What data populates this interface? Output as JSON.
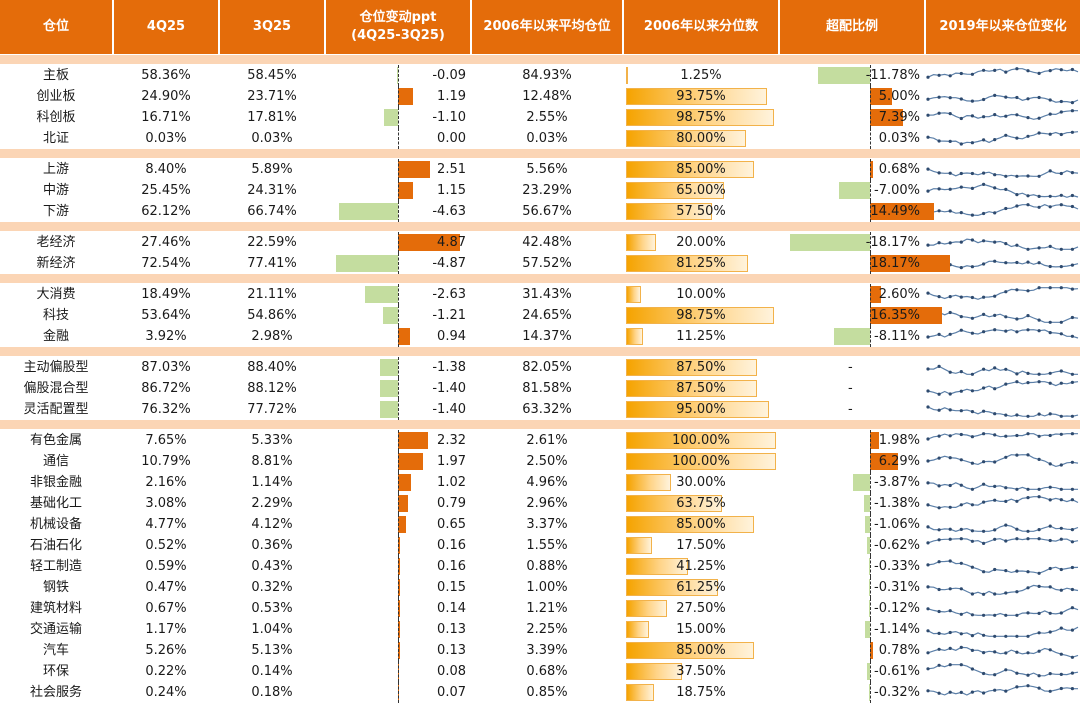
{
  "header": {
    "col_name": "仓位",
    "col_q4": "4Q25",
    "col_q3": "3Q25",
    "col_change": "仓位变动ppt\n(4Q25-3Q25)",
    "col_avg": "2006年以来平均仓位",
    "col_pctile": "2006年以来分位数",
    "col_over": "超配比例",
    "col_trend": "2019年以来仓位变化"
  },
  "colors": {
    "header_bg": "#e46c0a",
    "separator": "#fbd5b5",
    "positive": "#e46c0a",
    "negative": "#c4dd9f",
    "spark_line": "#5b7fa8",
    "spark_dot": "#2e4a6e"
  },
  "scales": {
    "change_max": 5.5,
    "overweight_max": 20.0
  },
  "groups": [
    {
      "rows": [
        {
          "name": "主板",
          "q4": "58.36%",
          "q3": "58.45%",
          "change": -0.09,
          "change_text": "-0.09",
          "avg": "84.93%",
          "pctile": 1.25,
          "pctile_text": "1.25%",
          "over": -11.78,
          "over_text": "-11.78%"
        },
        {
          "name": "创业板",
          "q4": "24.90%",
          "q3": "23.71%",
          "change": 1.19,
          "change_text": "1.19",
          "avg": "12.48%",
          "pctile": 93.75,
          "pctile_text": "93.75%",
          "over": 5.0,
          "over_text": "5.00%"
        },
        {
          "name": "科创板",
          "q4": "16.71%",
          "q3": "17.81%",
          "change": -1.1,
          "change_text": "-1.10",
          "avg": "2.55%",
          "pctile": 98.75,
          "pctile_text": "98.75%",
          "over": 7.39,
          "over_text": "7.39%"
        },
        {
          "name": "北证",
          "q4": "0.03%",
          "q3": "0.03%",
          "change": 0.0,
          "change_text": "0.00",
          "avg": "0.03%",
          "pctile": 80.0,
          "pctile_text": "80.00%",
          "over": 0.03,
          "over_text": "0.03%"
        }
      ]
    },
    {
      "rows": [
        {
          "name": "上游",
          "q4": "8.40%",
          "q3": "5.89%",
          "change": 2.51,
          "change_text": "2.51",
          "avg": "5.56%",
          "pctile": 85.0,
          "pctile_text": "85.00%",
          "over": 0.68,
          "over_text": "0.68%"
        },
        {
          "name": "中游",
          "q4": "25.45%",
          "q3": "24.31%",
          "change": 1.15,
          "change_text": "1.15",
          "avg": "23.29%",
          "pctile": 65.0,
          "pctile_text": "65.00%",
          "over": -7.0,
          "over_text": "-7.00%"
        },
        {
          "name": "下游",
          "q4": "62.12%",
          "q3": "66.74%",
          "change": -4.63,
          "change_text": "-4.63",
          "avg": "56.67%",
          "pctile": 57.5,
          "pctile_text": "57.50%",
          "over": 14.49,
          "over_text": "14.49%"
        }
      ]
    },
    {
      "rows": [
        {
          "name": "老经济",
          "q4": "27.46%",
          "q3": "22.59%",
          "change": 4.87,
          "change_text": "4.87",
          "avg": "42.48%",
          "pctile": 20.0,
          "pctile_text": "20.00%",
          "over": -18.17,
          "over_text": "-18.17%"
        },
        {
          "name": "新经济",
          "q4": "72.54%",
          "q3": "77.41%",
          "change": -4.87,
          "change_text": "-4.87",
          "avg": "57.52%",
          "pctile": 81.25,
          "pctile_text": "81.25%",
          "over": 18.17,
          "over_text": "18.17%"
        }
      ]
    },
    {
      "rows": [
        {
          "name": "大消费",
          "q4": "18.49%",
          "q3": "21.11%",
          "change": -2.63,
          "change_text": "-2.63",
          "avg": "31.43%",
          "pctile": 10.0,
          "pctile_text": "10.00%",
          "over": 2.6,
          "over_text": "2.60%"
        },
        {
          "name": "科技",
          "q4": "53.64%",
          "q3": "54.86%",
          "change": -1.21,
          "change_text": "-1.21",
          "avg": "24.65%",
          "pctile": 98.75,
          "pctile_text": "98.75%",
          "over": 16.35,
          "over_text": "16.35%"
        },
        {
          "name": "金融",
          "q4": "3.92%",
          "q3": "2.98%",
          "change": 0.94,
          "change_text": "0.94",
          "avg": "14.37%",
          "pctile": 11.25,
          "pctile_text": "11.25%",
          "over": -8.11,
          "over_text": "-8.11%"
        }
      ]
    },
    {
      "rows": [
        {
          "name": "主动偏股型",
          "q4": "87.03%",
          "q3": "88.40%",
          "change": -1.38,
          "change_text": "-1.38",
          "avg": "82.05%",
          "pctile": 87.5,
          "pctile_text": "87.50%",
          "over": null,
          "over_text": "-"
        },
        {
          "name": "偏股混合型",
          "q4": "86.72%",
          "q3": "88.12%",
          "change": -1.4,
          "change_text": "-1.40",
          "avg": "81.58%",
          "pctile": 87.5,
          "pctile_text": "87.50%",
          "over": null,
          "over_text": "-"
        },
        {
          "name": "灵活配置型",
          "q4": "76.32%",
          "q3": "77.72%",
          "change": -1.4,
          "change_text": "-1.40",
          "avg": "63.32%",
          "pctile": 95.0,
          "pctile_text": "95.00%",
          "over": null,
          "over_text": "-"
        }
      ]
    },
    {
      "rows": [
        {
          "name": "有色金属",
          "q4": "7.65%",
          "q3": "5.33%",
          "change": 2.32,
          "change_text": "2.32",
          "avg": "2.61%",
          "pctile": 100.0,
          "pctile_text": "100.00%",
          "over": 1.98,
          "over_text": "1.98%"
        },
        {
          "name": "通信",
          "q4": "10.79%",
          "q3": "8.81%",
          "change": 1.97,
          "change_text": "1.97",
          "avg": "2.50%",
          "pctile": 100.0,
          "pctile_text": "100.00%",
          "over": 6.29,
          "over_text": "6.29%"
        },
        {
          "name": "非银金融",
          "q4": "2.16%",
          "q3": "1.14%",
          "change": 1.02,
          "change_text": "1.02",
          "avg": "4.96%",
          "pctile": 30.0,
          "pctile_text": "30.00%",
          "over": -3.87,
          "over_text": "-3.87%"
        },
        {
          "name": "基础化工",
          "q4": "3.08%",
          "q3": "2.29%",
          "change": 0.79,
          "change_text": "0.79",
          "avg": "2.96%",
          "pctile": 63.75,
          "pctile_text": "63.75%",
          "over": -1.38,
          "over_text": "-1.38%"
        },
        {
          "name": "机械设备",
          "q4": "4.77%",
          "q3": "4.12%",
          "change": 0.65,
          "change_text": "0.65",
          "avg": "3.37%",
          "pctile": 85.0,
          "pctile_text": "85.00%",
          "over": -1.06,
          "over_text": "-1.06%"
        },
        {
          "name": "石油石化",
          "q4": "0.52%",
          "q3": "0.36%",
          "change": 0.16,
          "change_text": "0.16",
          "avg": "1.55%",
          "pctile": 17.5,
          "pctile_text": "17.50%",
          "over": -0.62,
          "over_text": "-0.62%"
        },
        {
          "name": "轻工制造",
          "q4": "0.59%",
          "q3": "0.43%",
          "change": 0.16,
          "change_text": "0.16",
          "avg": "0.88%",
          "pctile": 41.25,
          "pctile_text": "41.25%",
          "over": -0.33,
          "over_text": "-0.33%"
        },
        {
          "name": "钢铁",
          "q4": "0.47%",
          "q3": "0.32%",
          "change": 0.15,
          "change_text": "0.15",
          "avg": "1.00%",
          "pctile": 61.25,
          "pctile_text": "61.25%",
          "over": -0.31,
          "over_text": "-0.31%"
        },
        {
          "name": "建筑材料",
          "q4": "0.67%",
          "q3": "0.53%",
          "change": 0.14,
          "change_text": "0.14",
          "avg": "1.21%",
          "pctile": 27.5,
          "pctile_text": "27.50%",
          "over": -0.12,
          "over_text": "-0.12%"
        },
        {
          "name": "交通运输",
          "q4": "1.17%",
          "q3": "1.04%",
          "change": 0.13,
          "change_text": "0.13",
          "avg": "2.25%",
          "pctile": 15.0,
          "pctile_text": "15.00%",
          "over": -1.14,
          "over_text": "-1.14%"
        },
        {
          "name": "汽车",
          "q4": "5.26%",
          "q3": "5.13%",
          "change": 0.13,
          "change_text": "0.13",
          "avg": "3.39%",
          "pctile": 85.0,
          "pctile_text": "85.00%",
          "over": 0.78,
          "over_text": "0.78%"
        },
        {
          "name": "环保",
          "q4": "0.22%",
          "q3": "0.14%",
          "change": 0.08,
          "change_text": "0.08",
          "avg": "0.68%",
          "pctile": 37.5,
          "pctile_text": "37.50%",
          "over": -0.61,
          "over_text": "-0.61%"
        },
        {
          "name": "社会服务",
          "q4": "0.24%",
          "q3": "0.18%",
          "change": 0.07,
          "change_text": "0.07",
          "avg": "0.85%",
          "pctile": 18.75,
          "pctile_text": "18.75%",
          "over": -0.32,
          "over_text": "-0.32%"
        }
      ]
    }
  ]
}
